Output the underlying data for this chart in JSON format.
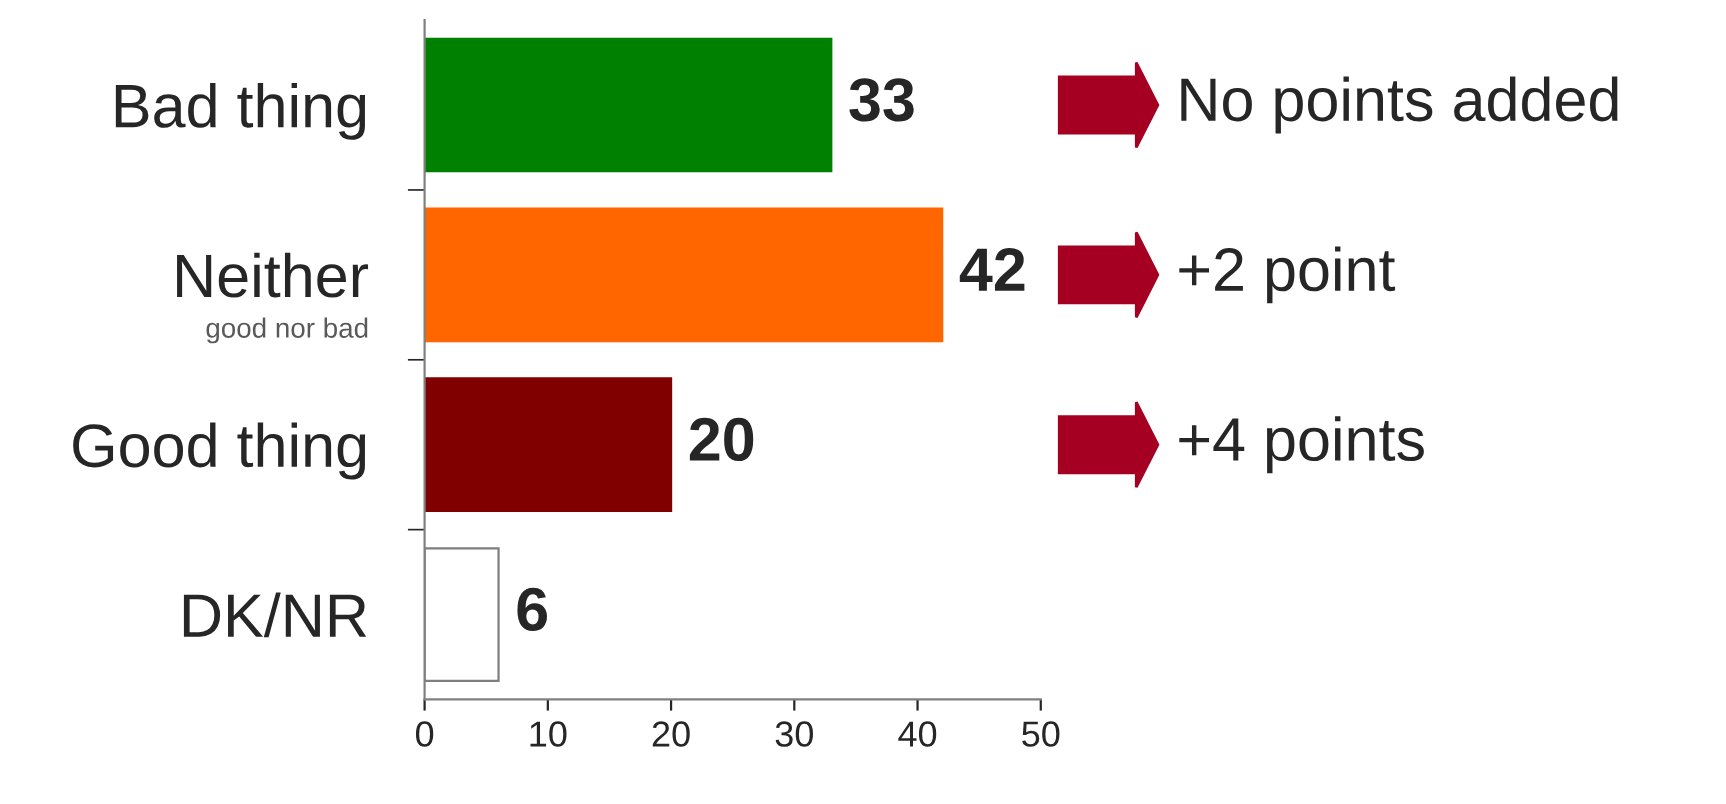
{
  "chart_data": {
    "type": "bar",
    "orientation": "horizontal",
    "categories": [
      "Bad thing",
      "Neither\ngood nor bad",
      "Good thing",
      "DK/NR"
    ],
    "values": [
      33,
      42,
      20,
      6
    ],
    "colors": [
      "#008000",
      "#ff6600",
      "#800000",
      "#ffffff"
    ],
    "xlim": [
      0,
      50
    ],
    "xticks": [
      0,
      10,
      20,
      30,
      40,
      50
    ],
    "data_labels": true,
    "grid": false,
    "legend": false,
    "annotations": [
      "No points added",
      "+2 point",
      "+4 points"
    ]
  }
}
